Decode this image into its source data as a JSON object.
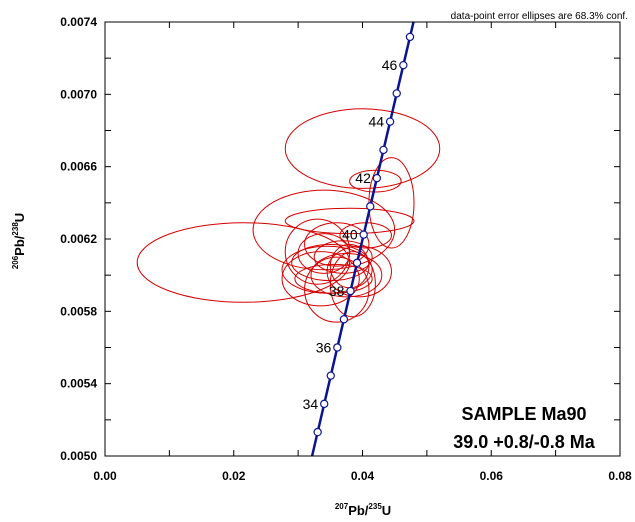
{
  "chart_data": {
    "type": "scatter",
    "subtype": "concordia-error-ellipses",
    "xlabel": {
      "sup": "207",
      "main": "Pb/",
      "sup2": "235",
      "end": "U"
    },
    "ylabel": {
      "sup": "206",
      "main": "Pb/",
      "sup2": "238",
      "end": "U"
    },
    "xlim": [
      0.0,
      0.08
    ],
    "ylim": [
      0.005,
      0.0074
    ],
    "xticks": [
      "0.00",
      "0.02",
      "0.04",
      "0.06",
      "0.08"
    ],
    "yticks": [
      "0.0050",
      "0.0054",
      "0.0058",
      "0.0062",
      "0.0066",
      "0.0070",
      "0.0074"
    ],
    "xtick_values": [
      0.0,
      0.02,
      0.04,
      0.06,
      0.08
    ],
    "ytick_values": [
      0.005,
      0.0054,
      0.0058,
      0.0062,
      0.0066,
      0.007,
      0.0074
    ],
    "note": "data-point error ellipses are 68.3% conf.",
    "sample_name": "SAMPLE Ma90",
    "sample_age": "39.0 +0.8/-0.8 Ma",
    "concordia_ages_ma": [
      33,
      34,
      35,
      36,
      37,
      38,
      39,
      40,
      41,
      42,
      43,
      44,
      45,
      46,
      47
    ],
    "age_labels": [
      "34",
      "36",
      "38",
      "40",
      "42",
      "44",
      "46"
    ],
    "age_label_values": [
      34,
      36,
      38,
      40,
      42,
      44,
      46
    ],
    "ellipses": [
      {
        "cx": 0.0215,
        "cy": 0.00607,
        "rx": 0.0165,
        "ry": 0.00022
      },
      {
        "cx": 0.04,
        "cy": 0.0067,
        "rx": 0.012,
        "ry": 0.00022
      },
      {
        "cx": 0.0445,
        "cy": 0.0064,
        "rx": 0.0035,
        "ry": 0.00025
      },
      {
        "cx": 0.042,
        "cy": 0.00652,
        "rx": 0.004,
        "ry": 6e-05
      },
      {
        "cx": 0.034,
        "cy": 0.00625,
        "rx": 0.011,
        "ry": 0.00022
      },
      {
        "cx": 0.038,
        "cy": 0.0063,
        "rx": 0.01,
        "ry": 7e-05
      },
      {
        "cx": 0.033,
        "cy": 0.00613,
        "rx": 0.005,
        "ry": 0.00018
      },
      {
        "cx": 0.0345,
        "cy": 0.00603,
        "rx": 0.007,
        "ry": 0.00013
      },
      {
        "cx": 0.035,
        "cy": 0.00607,
        "rx": 0.006,
        "ry": 0.0001
      },
      {
        "cx": 0.0375,
        "cy": 0.006,
        "rx": 0.0055,
        "ry": 0.00012
      },
      {
        "cx": 0.0385,
        "cy": 0.00595,
        "rx": 0.0035,
        "ry": 0.00018
      },
      {
        "cx": 0.0355,
        "cy": 0.00598,
        "rx": 0.006,
        "ry": 8e-05
      },
      {
        "cx": 0.0335,
        "cy": 0.00598,
        "rx": 0.006,
        "ry": 0.00015
      },
      {
        "cx": 0.036,
        "cy": 0.00592,
        "rx": 0.005,
        "ry": 0.00018
      },
      {
        "cx": 0.0395,
        "cy": 0.00602,
        "rx": 0.005,
        "ry": 0.00014
      },
      {
        "cx": 0.034,
        "cy": 0.00612,
        "rx": 0.004,
        "ry": 0.00011
      },
      {
        "cx": 0.037,
        "cy": 0.0061,
        "rx": 0.0045,
        "ry": 9e-05
      },
      {
        "cx": 0.0405,
        "cy": 0.00622,
        "rx": 0.004,
        "ry": 7e-05
      },
      {
        "cx": 0.038,
        "cy": 0.00605,
        "rx": 0.003,
        "ry": 0.00012
      },
      {
        "cx": 0.036,
        "cy": 0.00617,
        "rx": 0.005,
        "ry": 0.00012
      }
    ],
    "colors": {
      "concordia": "#0a1490",
      "ellipse": "#d40000",
      "marker_fill": "#ffffff",
      "axis": "#000000"
    }
  }
}
